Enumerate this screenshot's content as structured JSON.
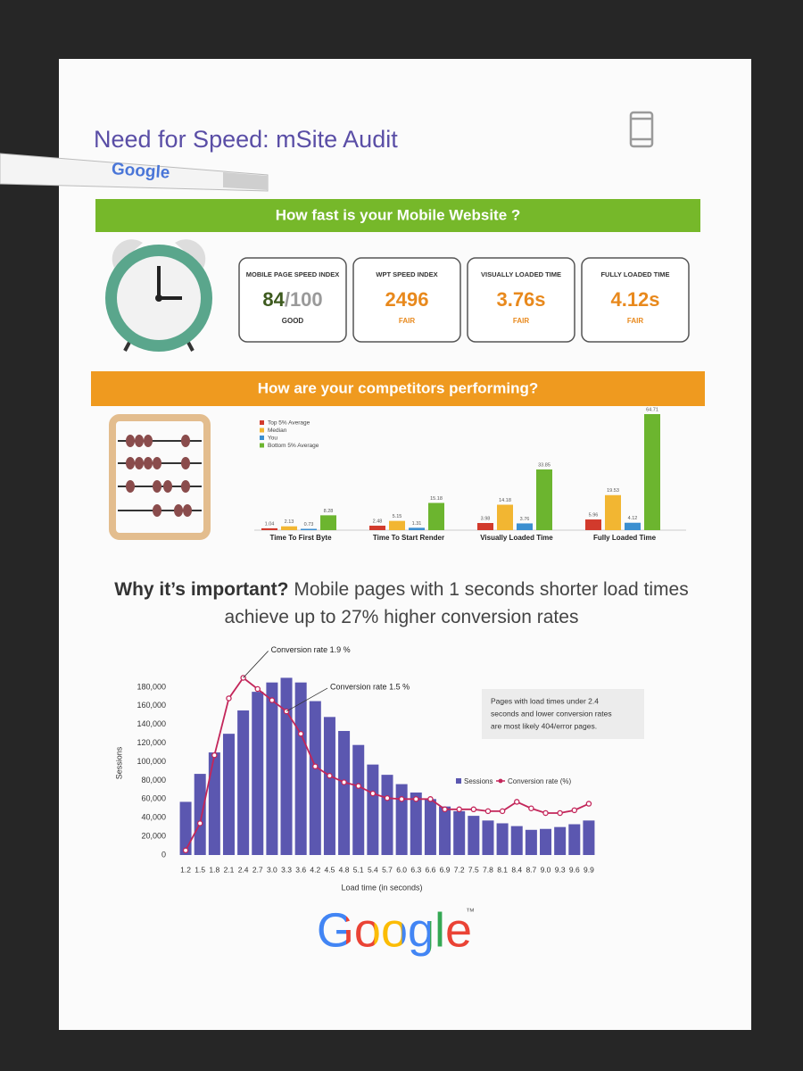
{
  "header": {
    "title": "Need for Speed: mSite Audit",
    "pen_text": "Google"
  },
  "section1": {
    "heading": "How fast is your Mobile Website ?",
    "metrics": [
      {
        "label": "MOBILE PAGE SPEED INDEX",
        "value": "84",
        "suffix": "/100",
        "rating": "GOOD"
      },
      {
        "label": "WPT SPEED INDEX",
        "value": "2496",
        "rating": "FAIR"
      },
      {
        "label": "VISUALLY LOADED TIME",
        "value": "3.76s",
        "rating": "FAIR"
      },
      {
        "label": "FULLY LOADED TIME",
        "value": "4.12s",
        "rating": "FAIR"
      }
    ]
  },
  "section2": {
    "heading": "How are your competitors performing?"
  },
  "important": {
    "lead": "Why it’s important?",
    "text": "Mobile pages with 1 seconds shorter load times achieve up to 27% higher conversion rates"
  },
  "footer": {
    "logo": "Google",
    "tm": "™"
  },
  "chart_data": [
    {
      "type": "bar",
      "categories": [
        "Time To First Byte",
        "Time To Start Render",
        "Visually Loaded Time",
        "Fully Loaded Time"
      ],
      "series": [
        {
          "name": "Top 5% Average",
          "color": "#d23a2c",
          "values": [
            1.04,
            2.48,
            3.98,
            5.96
          ]
        },
        {
          "name": "Median",
          "color": "#f2b632",
          "values": [
            2.13,
            5.15,
            14.18,
            19.53
          ]
        },
        {
          "name": "You",
          "color": "#3b8fd0",
          "values": [
            0.73,
            1.31,
            3.76,
            4.12
          ]
        },
        {
          "name": "Bottom 5% Average",
          "color": "#6cb52f",
          "values": [
            8.28,
            15.18,
            33.85,
            64.71
          ]
        }
      ]
    },
    {
      "type": "combo",
      "x_label": "Load time (in seconds)",
      "y_label": "Sessions",
      "categories": [
        "1.2",
        "1.5",
        "1.8",
        "2.1",
        "2.4",
        "2.7",
        "3.0",
        "3.3",
        "3.6",
        "4.2",
        "4.5",
        "4.8",
        "5.1",
        "5.4",
        "5.7",
        "6.0",
        "6.3",
        "6.6",
        "6.9",
        "7.2",
        "7.5",
        "7.8",
        "8.1",
        "8.4",
        "8.7",
        "9.0",
        "9.3",
        "9.6",
        "9.9"
      ],
      "series": [
        {
          "name": "Sessions",
          "type": "bar",
          "color": "#5b57b0",
          "values": [
            57000,
            87000,
            110000,
            130000,
            155000,
            175000,
            185000,
            190000,
            185000,
            165000,
            148000,
            133000,
            118000,
            97000,
            86000,
            76000,
            67000,
            60000,
            52000,
            47000,
            42000,
            37000,
            34000,
            31000,
            27000,
            28000,
            30000,
            33000,
            37000
          ]
        },
        {
          "name": "Conversion rate (%)",
          "type": "line",
          "axis": "y2",
          "color": "#c3265a",
          "values": [
            0.05,
            0.34,
            1.07,
            1.68,
            1.9,
            1.78,
            1.66,
            1.54,
            1.3,
            0.95,
            0.85,
            0.78,
            0.74,
            0.66,
            0.61,
            0.6,
            0.6,
            0.6,
            0.49,
            0.49,
            0.49,
            0.47,
            0.47,
            0.57,
            0.5,
            0.45,
            0.45,
            0.48,
            0.55
          ]
        }
      ],
      "ylim": [
        0,
        200000
      ],
      "yticks": [
        0,
        {
          "value": 20000,
          "label": "20,000"
        },
        {
          "value": 40000,
          "label": "40,000"
        },
        {
          "value": 60000,
          "label": "60,000"
        },
        {
          "value": 80000,
          "label": "80,000"
        },
        {
          "value": 100000,
          "label": "100,000"
        },
        {
          "value": 120000,
          "label": "120,000"
        },
        {
          "value": 140000,
          "label": "140,000"
        },
        {
          "value": 160000,
          "label": "160,000"
        },
        {
          "value": 180000,
          "label": "180,000"
        }
      ],
      "y2lim": [
        0,
        2
      ],
      "annotations": [
        "Conversion rate 1.9 %",
        "Conversion rate 1.5 %"
      ],
      "note": [
        "Pages with load times under 2.4",
        "seconds and lower conversion rates",
        "are most likely 404/error pages."
      ]
    }
  ]
}
